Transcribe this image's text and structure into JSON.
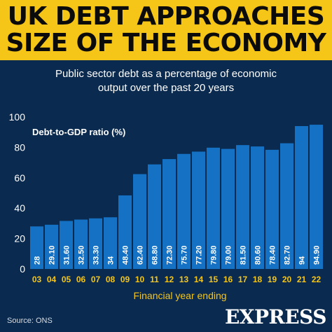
{
  "header": {
    "title_line1": "UK DEBT APPROACHES",
    "title_line2": "SIZE OF THE ECONOMY",
    "subtitle_line1": "Public sector debt as a percentage of economic",
    "subtitle_line2": "output over the past 20 years"
  },
  "footer": {
    "source": "Source: ONS",
    "logo": "EXPRESS"
  },
  "colors": {
    "background": "#0a2a4f",
    "banner": "#f5c518",
    "bar": "#1471c4",
    "axis_text": "#f5c518",
    "value_text": "#ffffff"
  },
  "chart_data": {
    "type": "bar",
    "ylabel": "Debt-to-GDP ratio (%)",
    "xlabel": "Financial year ending",
    "ylim": [
      0,
      100
    ],
    "yticks": [
      0,
      20,
      40,
      60,
      80,
      100
    ],
    "grid": false,
    "categories": [
      "03",
      "04",
      "05",
      "06",
      "07",
      "08",
      "09",
      "10",
      "11",
      "12",
      "13",
      "14",
      "15",
      "16",
      "17",
      "18",
      "19",
      "20",
      "21",
      "22"
    ],
    "values": [
      28,
      29.1,
      31.6,
      32.5,
      33.3,
      34,
      48.4,
      62.4,
      68.8,
      72.3,
      75.7,
      77.2,
      79.8,
      79.0,
      81.5,
      80.6,
      78.4,
      82.7,
      94,
      94.9
    ],
    "value_labels": [
      "28",
      "29.10",
      "31.60",
      "32.50",
      "33.30",
      "34",
      "48.40",
      "62.40",
      "68.80",
      "72.30",
      "75.70",
      "77.20",
      "79.80",
      "79.00",
      "81.50",
      "80.60",
      "78.40",
      "82.70",
      "94",
      "94.90"
    ]
  }
}
